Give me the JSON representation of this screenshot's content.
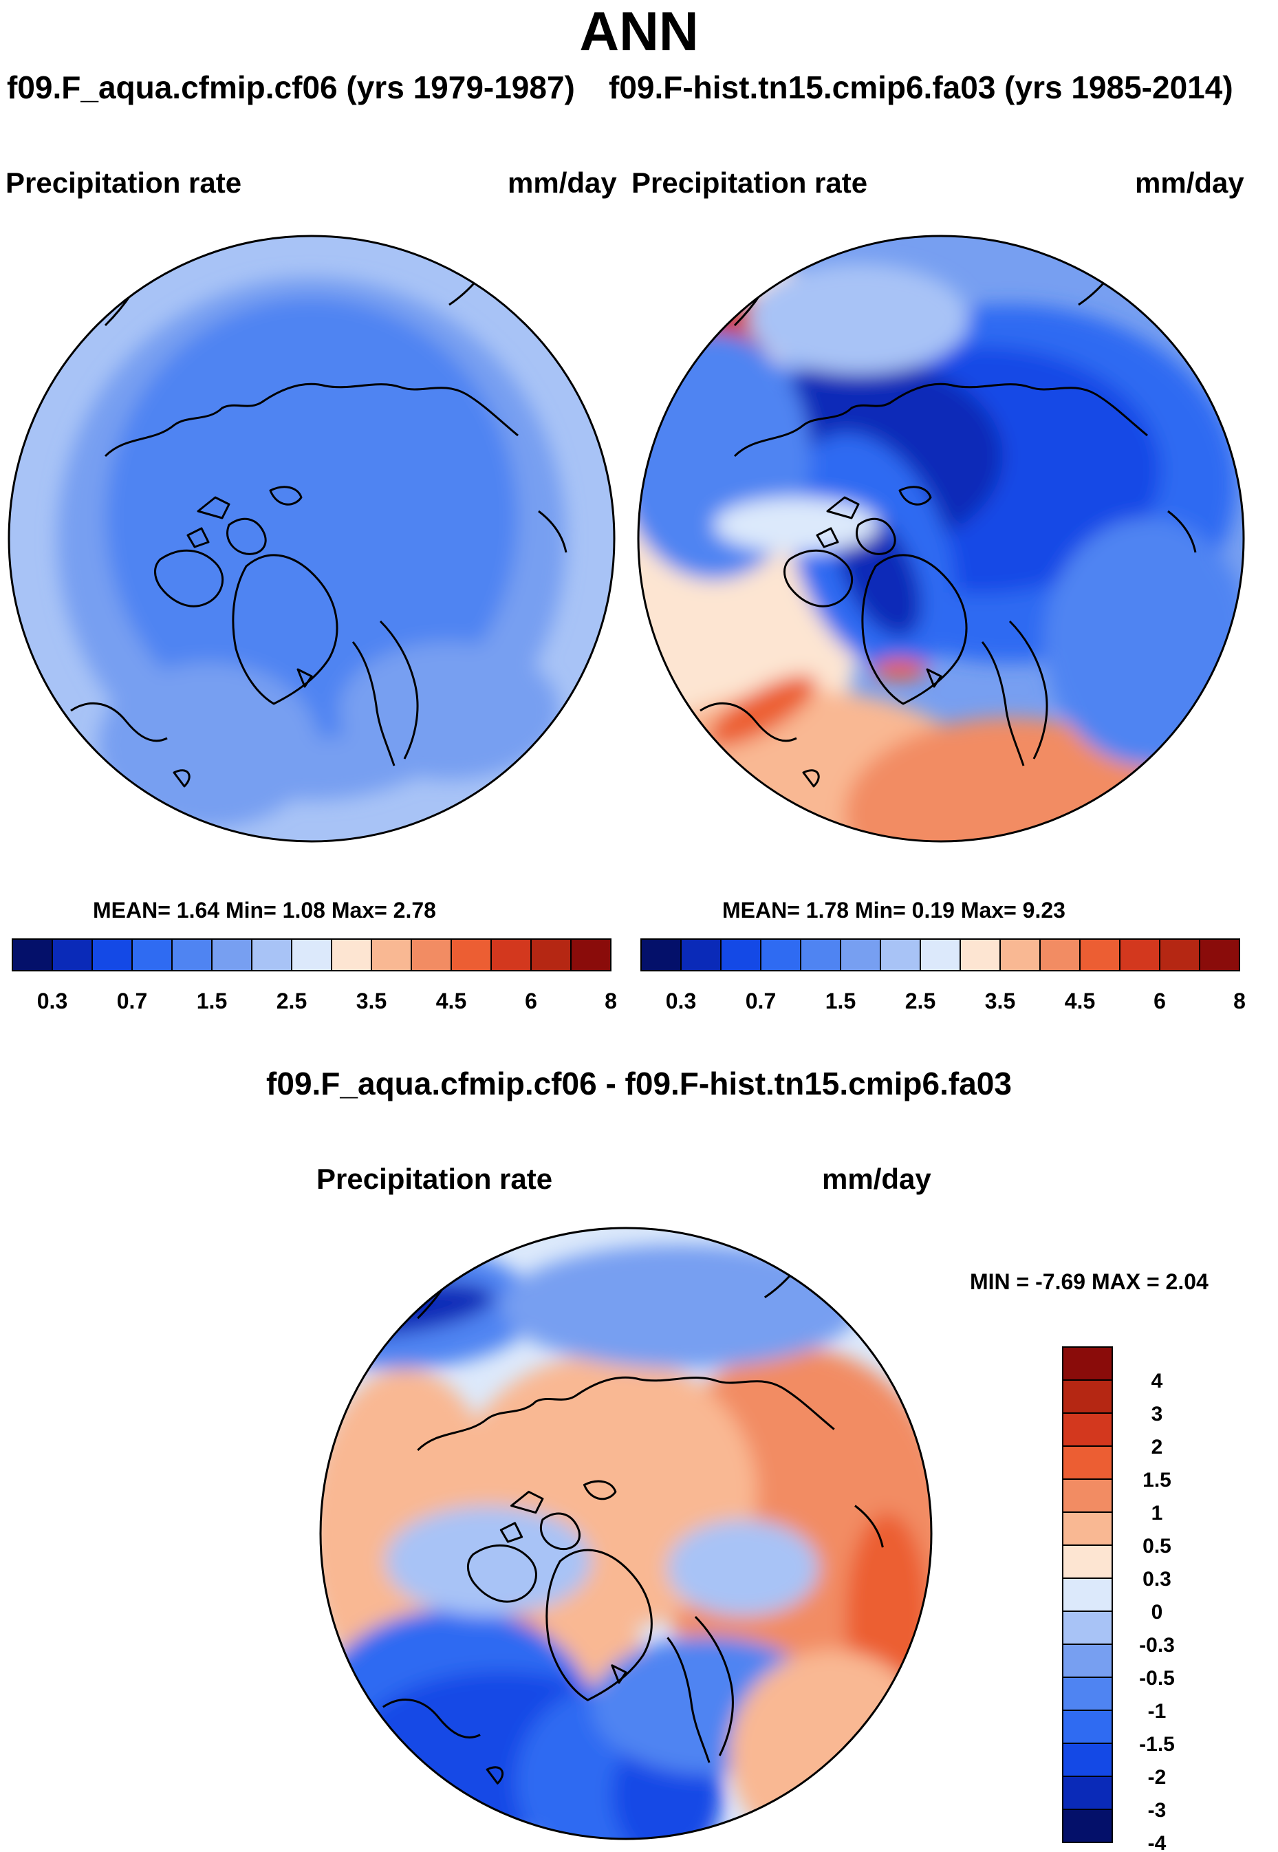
{
  "header": {
    "title": "ANN",
    "left_case": "f09.F_aqua.cfmip.cf06 (yrs 1979-1987)",
    "right_case": "f09.F-hist.tn15.cmip6.fa03 (yrs 1985-2014)",
    "diff_title": "f09.F_aqua.cfmip.cf06 - f09.F-hist.tn15.cmip6.fa03"
  },
  "chart_data": [
    {
      "type": "heatmap",
      "projection": "north polar stereographic",
      "variable": "Precipitation rate",
      "units": "mm/day",
      "stats": "MEAN=   1.64  Min=   1.08  Max=   2.78",
      "mean": 1.64,
      "min": 1.08,
      "max": 2.78,
      "colorbar_orientation": "horizontal",
      "colorbar_colors": [
        "#04106a",
        "#0a2ab8",
        "#1449e6",
        "#2f6bf2",
        "#4f84f2",
        "#779ff1",
        "#a8c3f6",
        "#dce9fb",
        "#fde5d2",
        "#f9b893",
        "#f28c63",
        "#ec5e33",
        "#d3381e",
        "#b52713",
        "#8a0c0a"
      ],
      "colorbar_tick_labels": [
        "0.3",
        "0.7",
        "1.5",
        "2.5",
        "3.5",
        "4.5",
        "6",
        "8"
      ],
      "field_levels_mmday": [
        1.5,
        2.0,
        2.5
      ]
    },
    {
      "type": "heatmap",
      "projection": "north polar stereographic",
      "variable": "Precipitation rate",
      "units": "mm/day",
      "stats": "MEAN=   1.78  Min=   0.19  Max=   9.23",
      "mean": 1.78,
      "min": 0.19,
      "max": 9.23,
      "colorbar_orientation": "horizontal",
      "colorbar_colors": [
        "#04106a",
        "#0a2ab8",
        "#1449e6",
        "#2f6bf2",
        "#4f84f2",
        "#779ff1",
        "#a8c3f6",
        "#dce9fb",
        "#fde5d2",
        "#f9b893",
        "#f28c63",
        "#ec5e33",
        "#d3381e",
        "#b52713",
        "#8a0c0a"
      ],
      "colorbar_tick_labels": [
        "0.3",
        "0.7",
        "1.5",
        "2.5",
        "3.5",
        "4.5",
        "6",
        "8"
      ]
    },
    {
      "type": "heatmap",
      "projection": "north polar stereographic",
      "variable": "Precipitation rate",
      "units": "mm/day",
      "minmax": "MIN =  -7.69 MAX =    2.04",
      "min": -7.69,
      "max": 2.04,
      "colorbar_orientation": "vertical",
      "colorbar_colors": [
        "#8a0c0a",
        "#b52713",
        "#d3381e",
        "#ec5e33",
        "#f28c63",
        "#f9b893",
        "#fde5d2",
        "#dce9fb",
        "#a8c3f6",
        "#779ff1",
        "#4f84f2",
        "#2f6bf2",
        "#1449e6",
        "#0a2ab8",
        "#04106a"
      ],
      "colorbar_tick_labels": [
        "4",
        "3",
        "2",
        "1.5",
        "1",
        "0.5",
        "0.3",
        "0",
        "-0.3",
        "-0.5",
        "-1",
        "-1.5",
        "-2",
        "-3",
        "-4"
      ]
    }
  ]
}
